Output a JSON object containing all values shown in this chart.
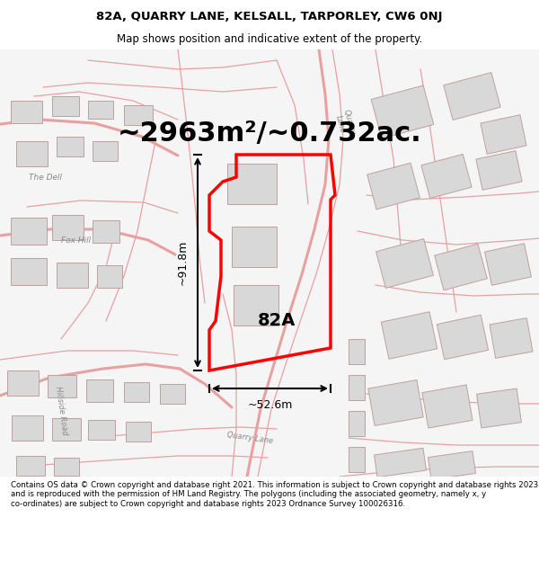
{
  "title": "82A, QUARRY LANE, KELSALL, TARPORLEY, CW6 0NJ",
  "subtitle": "Map shows position and indicative extent of the property.",
  "area_text": "~2963m²/~0.732ac.",
  "label_82A": "82A",
  "dim_vertical": "~91.8m",
  "dim_horizontal": "~52.6m",
  "footer": "Contains OS data © Crown copyright and database right 2021. This information is subject to Crown copyright and database rights 2023 and is reproduced with the permission of HM Land Registry. The polygons (including the associated geometry, namely x, y co-ordinates) are subject to Crown copyright and database rights 2023 Ordnance Survey 100026316.",
  "map_bg": "#ffffff",
  "road_color": "#e8a0a0",
  "building_color": "#d8d8d8",
  "building_edge": "#c0a0a0",
  "highlight_color": "#ff0000",
  "text_color": "#000000",
  "title_color": "#000000",
  "footer_bg": "#ffffff",
  "header_bg": "#ffffff",
  "road_lw_main": 2.2,
  "road_lw_thin": 0.9,
  "dim_lw": 1.5,
  "prop_lw": 2.5
}
